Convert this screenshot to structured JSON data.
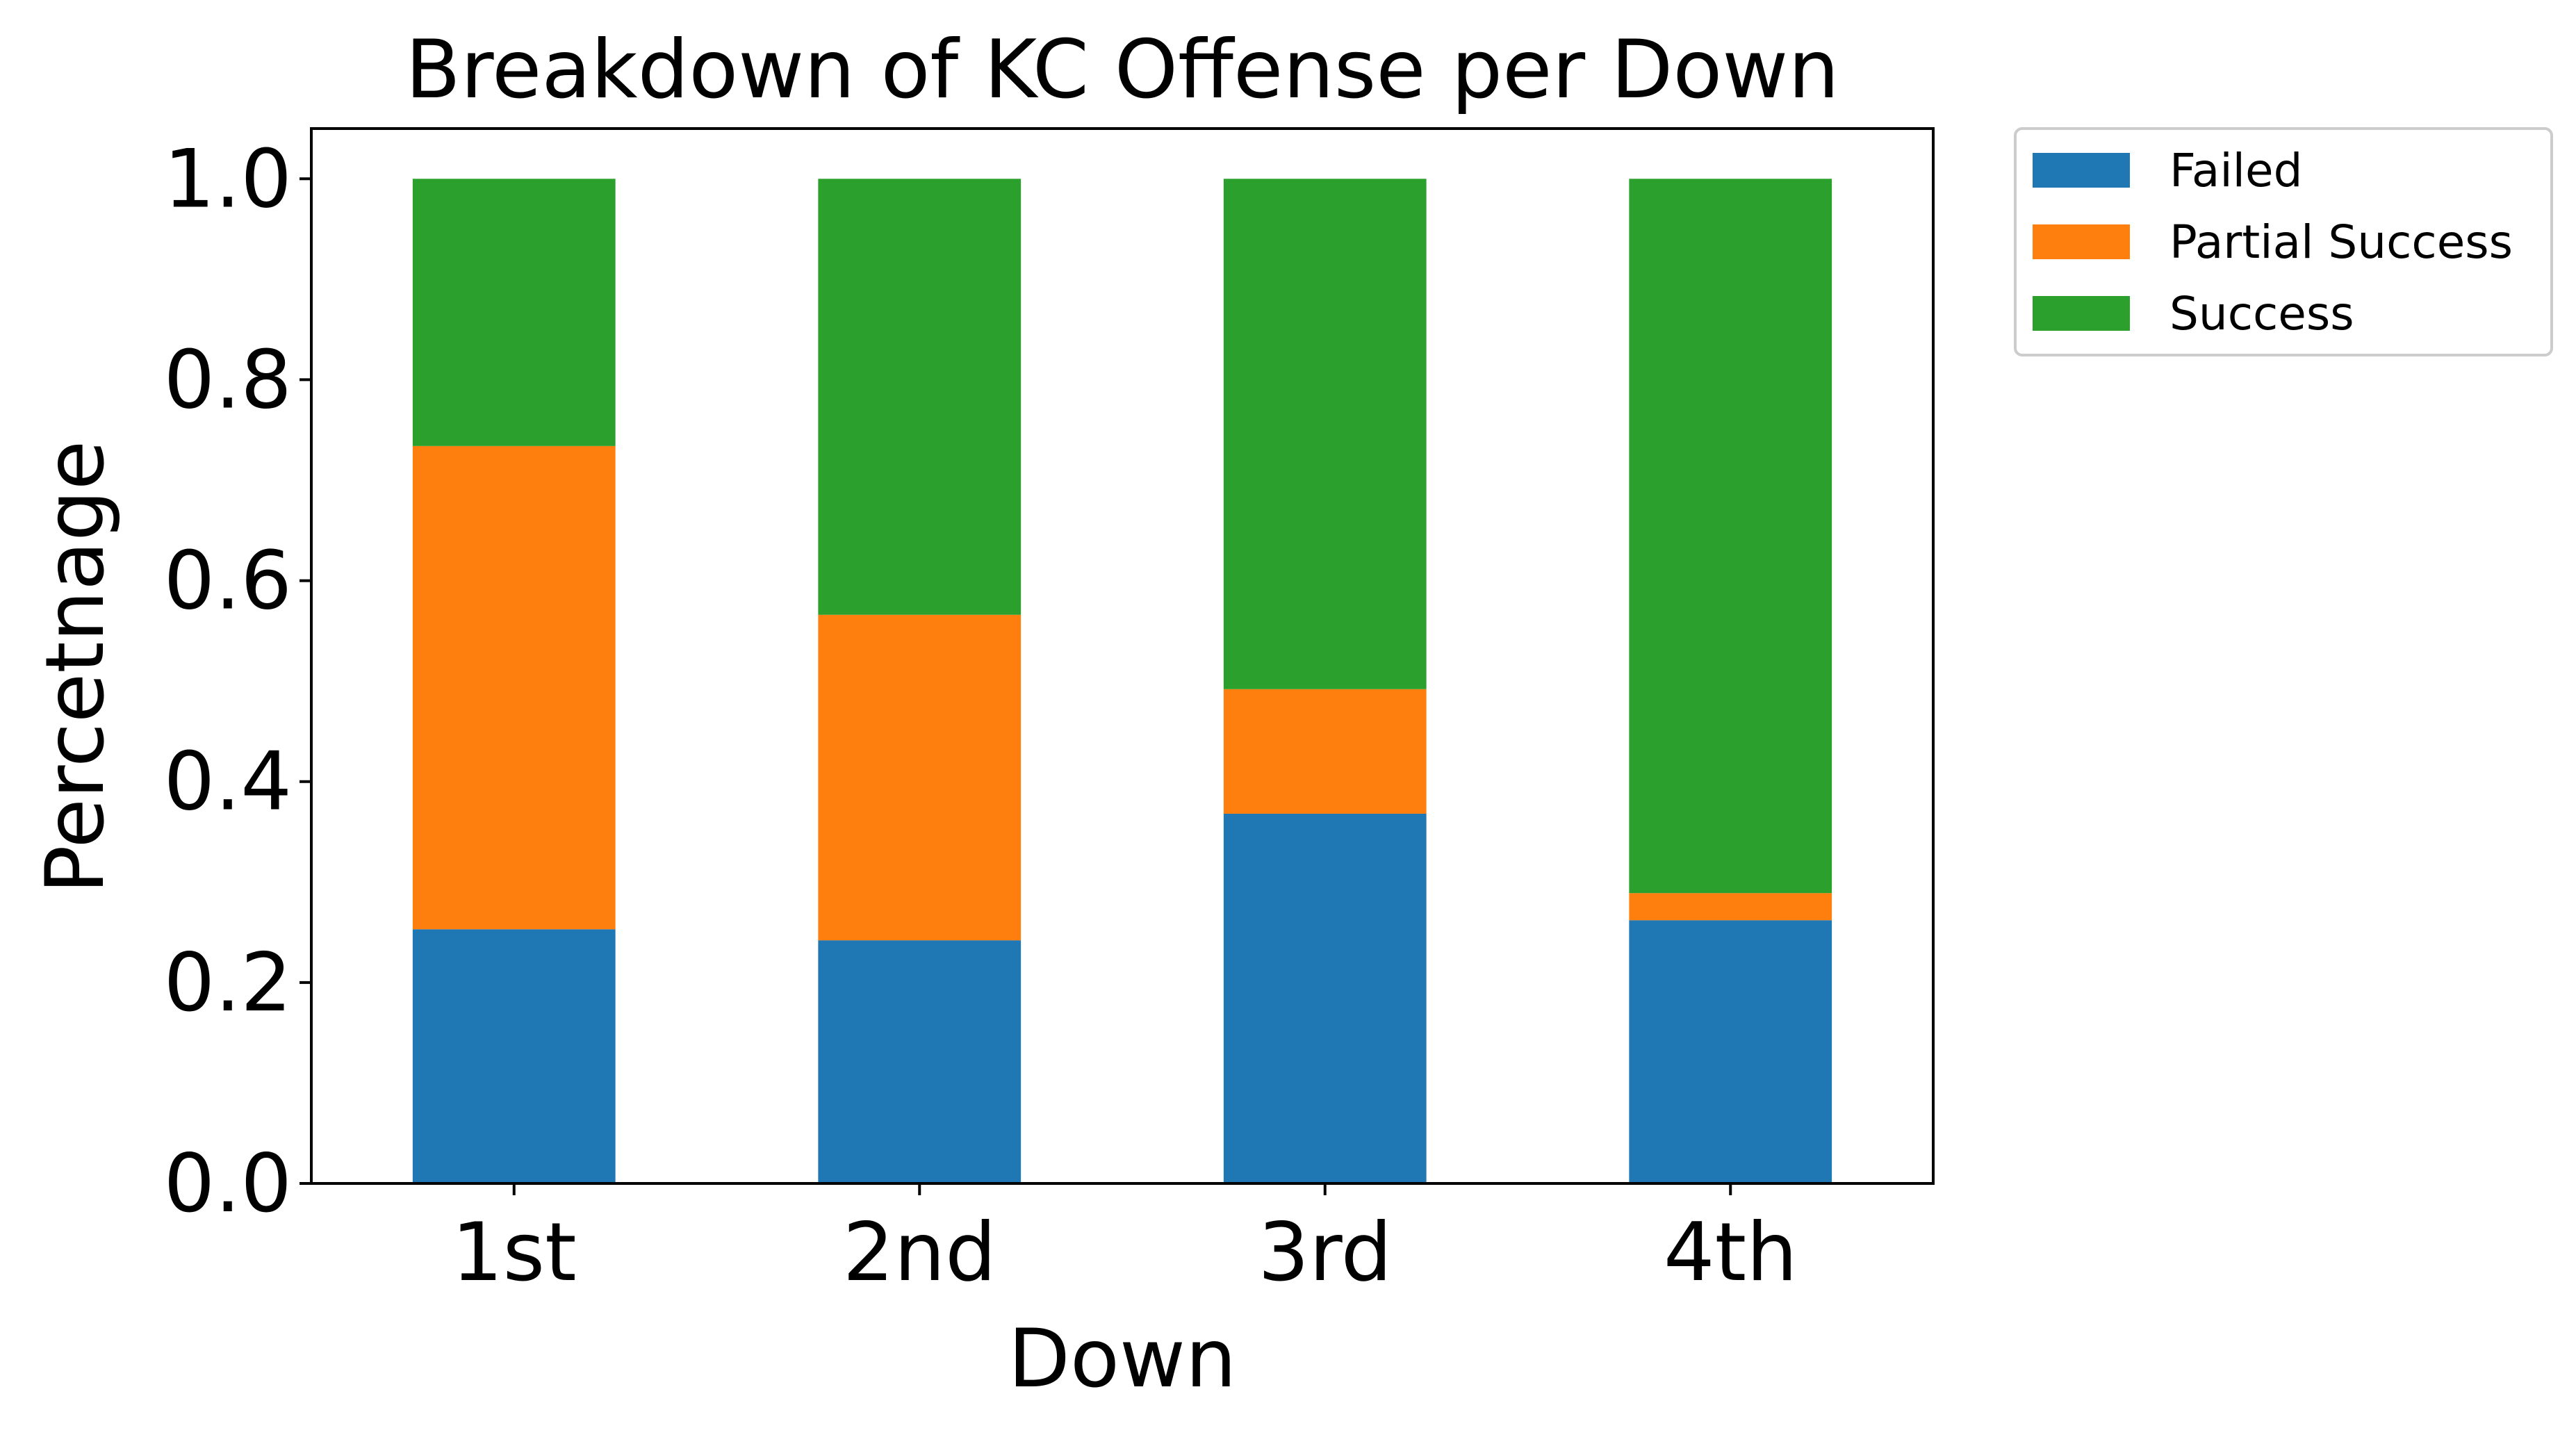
{
  "chart_data": {
    "type": "bar",
    "stacked": true,
    "title": "Breakdown of KC Offense per Down",
    "xlabel": "Down",
    "ylabel": "Percetnage",
    "categories": [
      "1st",
      "2nd",
      "3rd",
      "4th"
    ],
    "ylim": [
      0,
      1.05
    ],
    "yticks": [
      "0.0",
      "0.2",
      "0.4",
      "0.6",
      "0.8",
      "1.0"
    ],
    "grid": false,
    "legend_position": "outside top-right",
    "series": [
      {
        "name": "Failed",
        "color": "#1f77b4",
        "values": [
          0.253,
          0.242,
          0.368,
          0.262
        ]
      },
      {
        "name": "Partial Success",
        "color": "#ff7f0e",
        "values": [
          0.481,
          0.324,
          0.124,
          0.027
        ]
      },
      {
        "name": "Success",
        "color": "#2ca02c",
        "values": [
          0.266,
          0.434,
          0.508,
          0.711
        ]
      }
    ]
  }
}
